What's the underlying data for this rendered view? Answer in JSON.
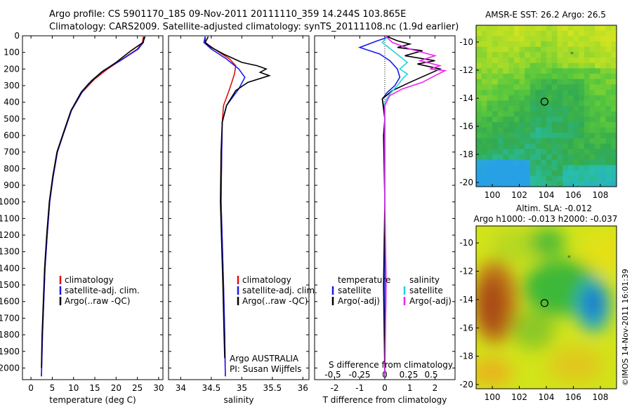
{
  "header": {
    "line1": "Argo profile: CS 5901170_185 09-Nov-2011 20111110_359 14.244S 103.865E",
    "line2": "Climatology: CARS2009. Satellite-adjusted climatology: synTS_20111108.nc (1.9d earlier)"
  },
  "side_label": "©IMOS 14-Nov-2011 16:01:39",
  "colors": {
    "climatology": "#dd1111",
    "satellite": "#1a1aee",
    "argo": "#000000",
    "sal_satellite": "#22d3e0",
    "sal_argo": "#ee22ee"
  },
  "chart_data": [
    {
      "type": "line",
      "panel": "temperature",
      "xlabel": "temperature (deg C)",
      "ylabel": "",
      "xlim": [
        -2,
        31
      ],
      "ylim": [
        2070,
        0
      ],
      "xticks": [
        0,
        5,
        10,
        15,
        20,
        25,
        30
      ],
      "yticks": [
        0,
        100,
        200,
        300,
        400,
        500,
        600,
        700,
        800,
        900,
        1000,
        1100,
        1200,
        1300,
        1400,
        1500,
        1600,
        1700,
        1800,
        1900,
        2000
      ],
      "legend": [
        "climatology",
        "satellite-adj. clim.",
        "Argo(..raw -QC)"
      ],
      "series": [
        {
          "name": "climatology",
          "color": "#dd1111",
          "points": [
            [
              26.4,
              5
            ],
            [
              26.2,
              40
            ],
            [
              25.0,
              80
            ],
            [
              21.5,
              140
            ],
            [
              18.0,
              200
            ],
            [
              15.0,
              260
            ],
            [
              12.0,
              340
            ],
            [
              9.5,
              450
            ],
            [
              7.5,
              600
            ],
            [
              6.2,
              700
            ],
            [
              5.2,
              850
            ],
            [
              4.4,
              1000
            ],
            [
              3.8,
              1200
            ],
            [
              3.3,
              1400
            ],
            [
              3.0,
              1600
            ],
            [
              2.7,
              1800
            ],
            [
              2.5,
              2000
            ],
            [
              2.45,
              2050
            ]
          ]
        },
        {
          "name": "satellite-adj. clim.",
          "color": "#1a1aee",
          "points": [
            [
              26.6,
              5
            ],
            [
              26.4,
              40
            ],
            [
              25.2,
              80
            ],
            [
              21.0,
              150
            ],
            [
              17.0,
              210
            ],
            [
              14.2,
              270
            ],
            [
              12.0,
              340
            ],
            [
              9.5,
              450
            ],
            [
              7.5,
              600
            ],
            [
              6.2,
              700
            ],
            [
              5.2,
              850
            ],
            [
              4.4,
              1000
            ],
            [
              3.8,
              1200
            ],
            [
              3.3,
              1400
            ],
            [
              3.0,
              1600
            ],
            [
              2.7,
              1800
            ],
            [
              2.5,
              2000
            ],
            [
              2.45,
              2050
            ]
          ]
        },
        {
          "name": "Argo(..raw -QC)",
          "color": "#000000",
          "points": [
            [
              26.8,
              5
            ],
            [
              26.3,
              40
            ],
            [
              23.5,
              90
            ],
            [
              20.0,
              160
            ],
            [
              16.5,
              220
            ],
            [
              13.5,
              290
            ],
            [
              11.8,
              340
            ],
            [
              9.4,
              450
            ],
            [
              7.4,
              600
            ],
            [
              6.1,
              700
            ],
            [
              5.1,
              850
            ],
            [
              4.3,
              1000
            ],
            [
              3.7,
              1200
            ],
            [
              3.2,
              1400
            ],
            [
              2.9,
              1600
            ],
            [
              2.6,
              1800
            ],
            [
              2.45,
              2000
            ]
          ]
        }
      ]
    },
    {
      "type": "line",
      "panel": "salinity",
      "xlabel": "salinity",
      "xlim": [
        33.8,
        36.1
      ],
      "ylim": [
        2070,
        0
      ],
      "xticks": [
        34,
        34.5,
        35,
        35.5,
        36
      ],
      "legend": [
        "climatology",
        "satellite-adj. clim.",
        "Argo(..raw -QC)"
      ],
      "annotation": [
        "Argo AUSTRALIA",
        "PI: Susan Wijffels"
      ],
      "series": [
        {
          "name": "climatology",
          "color": "#dd1111",
          "points": [
            [
              34.4,
              5
            ],
            [
              34.4,
              40
            ],
            [
              34.55,
              80
            ],
            [
              34.8,
              140
            ],
            [
              34.9,
              180
            ],
            [
              34.88,
              230
            ],
            [
              34.8,
              320
            ],
            [
              34.7,
              420
            ],
            [
              34.68,
              520
            ],
            [
              34.67,
              700
            ],
            [
              34.66,
              1000
            ],
            [
              34.7,
              1500
            ],
            [
              34.72,
              1800
            ],
            [
              34.73,
              2050
            ]
          ]
        },
        {
          "name": "satellite-adj. clim.",
          "color": "#1a1aee",
          "points": [
            [
              34.4,
              5
            ],
            [
              34.38,
              40
            ],
            [
              34.5,
              80
            ],
            [
              34.75,
              140
            ],
            [
              34.95,
              200
            ],
            [
              35.05,
              250
            ],
            [
              34.95,
              320
            ],
            [
              34.75,
              420
            ],
            [
              34.68,
              520
            ],
            [
              34.67,
              700
            ],
            [
              34.66,
              1000
            ],
            [
              34.7,
              1500
            ],
            [
              34.72,
              1800
            ],
            [
              34.73,
              2050
            ]
          ]
        },
        {
          "name": "Argo(..raw -QC)",
          "color": "#000000",
          "points": [
            [
              34.45,
              5
            ],
            [
              34.4,
              40
            ],
            [
              34.5,
              70
            ],
            [
              34.7,
              110
            ],
            [
              35.0,
              160
            ],
            [
              35.25,
              180
            ],
            [
              35.4,
              200
            ],
            [
              35.3,
              220
            ],
            [
              35.45,
              240
            ],
            [
              35.1,
              280
            ],
            [
              34.9,
              330
            ],
            [
              34.75,
              420
            ],
            [
              34.68,
              520
            ],
            [
              34.66,
              700
            ],
            [
              34.65,
              1000
            ],
            [
              34.69,
              1500
            ],
            [
              34.71,
              1800
            ],
            [
              34.72,
              1940
            ]
          ]
        }
      ]
    },
    {
      "type": "line",
      "panel": "difference",
      "xlabel": "T difference from climatology",
      "top_axis_label": "S difference from climatology",
      "xlim": [
        -2.8,
        2.8
      ],
      "ylim": [
        2070,
        0
      ],
      "xticks": [
        -2,
        -1,
        0,
        1,
        2
      ],
      "top_ticks": [
        "-0.5",
        "-0.25",
        "0",
        "0.25",
        "0.5"
      ],
      "legend_temperature": {
        "header": "temperature",
        "items": [
          "satellite",
          "Argo(-adj)"
        ]
      },
      "legend_salinity": {
        "header": "salinity",
        "items": [
          "satellite",
          "Argo(-adj)"
        ]
      },
      "series": [
        {
          "name": "temperature satellite",
          "color": "#1a1aee",
          "points": [
            [
              0.2,
              5
            ],
            [
              -0.3,
              30
            ],
            [
              -1.0,
              70
            ],
            [
              -0.2,
              110
            ],
            [
              0.2,
              150
            ],
            [
              0.5,
              200
            ],
            [
              0.6,
              250
            ],
            [
              0.4,
              300
            ],
            [
              0.1,
              340
            ],
            [
              -0.1,
              380
            ],
            [
              -0.05,
              420
            ],
            [
              0,
              500
            ],
            [
              0,
              1000
            ],
            [
              0,
              1500
            ],
            [
              0,
              2050
            ]
          ]
        },
        {
          "name": "temperature Argo(-adj)",
          "color": "#000000",
          "points": [
            [
              0.1,
              5
            ],
            [
              0.5,
              30
            ],
            [
              1.0,
              50
            ],
            [
              0.5,
              70
            ],
            [
              1.5,
              90
            ],
            [
              0.8,
              120
            ],
            [
              2.0,
              150
            ],
            [
              1.3,
              170
            ],
            [
              2.2,
              200
            ],
            [
              1.6,
              240
            ],
            [
              1.0,
              280
            ],
            [
              0.3,
              330
            ],
            [
              -0.1,
              380
            ],
            [
              0,
              500
            ],
            [
              -0.05,
              600
            ],
            [
              0,
              1000
            ],
            [
              -0.05,
              1500
            ],
            [
              0,
              2050
            ]
          ]
        },
        {
          "name": "salinity satellite",
          "color": "#22d3e0",
          "points": [
            [
              0.1,
              5
            ],
            [
              -0.1,
              40
            ],
            [
              0.4,
              100
            ],
            [
              0.9,
              160
            ],
            [
              0.6,
              200
            ],
            [
              0.9,
              230
            ],
            [
              0.7,
              260
            ],
            [
              0.5,
              300
            ],
            [
              0.2,
              350
            ],
            [
              0,
              400
            ],
            [
              0,
              1000
            ],
            [
              0.05,
              1500
            ],
            [
              0,
              2050
            ]
          ]
        },
        {
          "name": "salinity Argo(-adj)",
          "color": "#ee22ee",
          "points": [
            [
              0.05,
              5
            ],
            [
              0.3,
              40
            ],
            [
              1.0,
              80
            ],
            [
              2.0,
              120
            ],
            [
              1.4,
              150
            ],
            [
              2.2,
              180
            ],
            [
              1.8,
              200
            ],
            [
              2.4,
              210
            ],
            [
              2.0,
              240
            ],
            [
              1.5,
              280
            ],
            [
              0.7,
              320
            ],
            [
              0.2,
              360
            ],
            [
              0,
              420
            ],
            [
              0,
              1000
            ],
            [
              0.05,
              1500
            ],
            [
              0,
              2050
            ]
          ]
        }
      ]
    },
    {
      "type": "heatmap",
      "panel": "AMSR-E SST",
      "title": "AMSR-E SST: 26.2 Argo: 26.5",
      "xticks": [
        100,
        102,
        104,
        106,
        108
      ],
      "yticks": [
        -10,
        -12,
        -14,
        -16,
        -18,
        -20
      ],
      "xlim": [
        98.8,
        109.2
      ],
      "ylim": [
        -20.3,
        -8.8
      ],
      "argo_position": {
        "lon": 103.865,
        "lat": -14.244
      }
    },
    {
      "type": "heatmap",
      "panel": "Altim SLA",
      "title": "Altim. SLA: -0.012",
      "subtitle": "Argo h1000: -0.013 h2000: -0.037",
      "xticks": [
        100,
        102,
        104,
        106,
        108
      ],
      "yticks": [
        -10,
        -12,
        -14,
        -16,
        -18,
        -20
      ],
      "xlim": [
        98.8,
        109.2
      ],
      "ylim": [
        -20.3,
        -8.8
      ],
      "argo_position": {
        "lon": 103.865,
        "lat": -14.244
      }
    }
  ]
}
